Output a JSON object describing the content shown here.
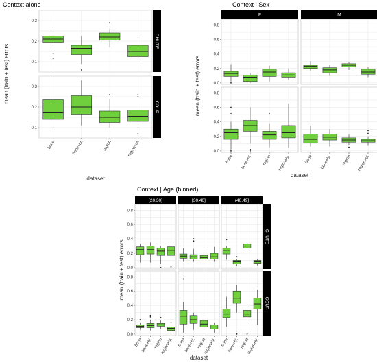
{
  "colors": {
    "box_fill": "#6fcf3d",
    "box_edge": "#333333",
    "panel_bg": "#ffffff",
    "grid": "#e4e4e4",
    "strip_bg": "#000000",
    "strip_text": "#ffffff"
  },
  "chart_data": [
    {
      "type": "box",
      "title": "Context alone",
      "xlabel": "dataset",
      "ylabel": "mean (train + test) errors",
      "categories": [
        "bone",
        "bone+bl.",
        "region",
        "region+bl."
      ],
      "row_strips": [
        "CHUTE",
        "COUP"
      ],
      "col_strips": [],
      "yticks": [
        [
          "0.1",
          "0.2",
          "0.3"
        ],
        [
          "0.1",
          "0.2",
          "0.3"
        ]
      ],
      "ylims": [
        [
          0.05,
          0.35
        ],
        [
          0.05,
          0.35
        ]
      ],
      "grid": true,
      "boxes": [
        [
          [
            {
              "min": 0.17,
              "q1": 0.195,
              "med": 0.21,
              "q3": 0.225,
              "max": 0.26,
              "out": [
                0.14,
                0.115
              ]
            },
            {
              "min": 0.09,
              "q1": 0.135,
              "med": 0.165,
              "q3": 0.18,
              "max": 0.225,
              "out": [
                0.06
              ]
            },
            {
              "min": 0.17,
              "q1": 0.205,
              "med": 0.22,
              "q3": 0.24,
              "max": 0.26,
              "out": [
                0.29
              ]
            },
            {
              "min": 0.09,
              "q1": 0.125,
              "med": 0.15,
              "q3": 0.18,
              "max": 0.22,
              "out": []
            }
          ]
        ],
        [
          [
            {
              "min": 0.1,
              "q1": 0.14,
              "med": 0.175,
              "q3": 0.235,
              "max": 0.35,
              "out": []
            },
            {
              "min": 0.11,
              "q1": 0.165,
              "med": 0.2,
              "q3": 0.255,
              "max": 0.33,
              "out": []
            },
            {
              "min": 0.1,
              "q1": 0.125,
              "med": 0.15,
              "q3": 0.18,
              "max": 0.24,
              "out": [
                0.26
              ]
            },
            {
              "min": 0.1,
              "q1": 0.13,
              "med": 0.155,
              "q3": 0.185,
              "max": 0.24,
              "out": [
                0.25,
                0.26,
                0.07
              ]
            }
          ]
        ]
      ]
    },
    {
      "type": "box",
      "title": "Context | Sex",
      "xlabel": "dataset",
      "ylabel": "mean (train + test) errors",
      "categories": [
        "bone",
        "bone+bl.",
        "region",
        "region+bl."
      ],
      "row_strips": [
        "CHUTE",
        "COUP"
      ],
      "col_strips": [
        "F",
        "M"
      ],
      "yticks": [
        [
          "0.0",
          "0.2",
          "0.4",
          "0.6",
          "0.8"
        ],
        [
          "0.0",
          "0.2",
          "0.4",
          "0.6",
          "0.8"
        ]
      ],
      "ylims": [
        [
          -0.02,
          0.88
        ],
        [
          -0.02,
          0.88
        ]
      ],
      "grid": true,
      "boxes": [
        [
          [
            {
              "min": 0.02,
              "q1": 0.09,
              "med": 0.13,
              "q3": 0.16,
              "max": 0.26,
              "out": [
                0.0
              ]
            },
            {
              "min": 0.0,
              "q1": 0.02,
              "med": 0.08,
              "q3": 0.11,
              "max": 0.14,
              "out": []
            },
            {
              "min": 0.02,
              "q1": 0.09,
              "med": 0.15,
              "q3": 0.19,
              "max": 0.24,
              "out": []
            },
            {
              "min": 0.04,
              "q1": 0.08,
              "med": 0.11,
              "q3": 0.14,
              "max": 0.2,
              "out": []
            }
          ],
          [
            {
              "min": 0.17,
              "q1": 0.2,
              "med": 0.23,
              "q3": 0.245,
              "max": 0.3,
              "out": []
            },
            {
              "min": 0.1,
              "q1": 0.14,
              "med": 0.18,
              "q3": 0.21,
              "max": 0.25,
              "out": []
            },
            {
              "min": 0.18,
              "q1": 0.22,
              "med": 0.245,
              "q3": 0.265,
              "max": 0.29,
              "out": []
            },
            {
              "min": 0.08,
              "q1": 0.12,
              "med": 0.15,
              "q3": 0.19,
              "max": 0.22,
              "out": []
            }
          ]
        ],
        [
          [
            {
              "min": 0.02,
              "q1": 0.16,
              "med": 0.25,
              "q3": 0.3,
              "max": 0.4,
              "out": [
                0.52,
                0.6,
                0.0
              ]
            },
            {
              "min": 0.1,
              "q1": 0.27,
              "med": 0.35,
              "q3": 0.42,
              "max": 0.6,
              "out": [
                0.02,
                0.0
              ]
            },
            {
              "min": 0.05,
              "q1": 0.16,
              "med": 0.22,
              "q3": 0.27,
              "max": 0.38,
              "out": [
                0.52
              ]
            },
            {
              "min": 0.04,
              "q1": 0.18,
              "med": 0.25,
              "q3": 0.35,
              "max": 0.65,
              "out": []
            }
          ],
          [
            {
              "min": 0.06,
              "q1": 0.11,
              "med": 0.16,
              "q3": 0.23,
              "max": 0.35,
              "out": []
            },
            {
              "min": 0.06,
              "q1": 0.15,
              "med": 0.19,
              "q3": 0.23,
              "max": 0.3,
              "out": []
            },
            {
              "min": 0.08,
              "q1": 0.12,
              "med": 0.15,
              "q3": 0.18,
              "max": 0.23,
              "out": [
                0.05
              ]
            },
            {
              "min": 0.07,
              "q1": 0.12,
              "med": 0.14,
              "q3": 0.16,
              "max": 0.2,
              "out": [
                0.24,
                0.28
              ]
            }
          ]
        ]
      ]
    },
    {
      "type": "box",
      "title": "Context | Age (binned)",
      "xlabel": "dataset",
      "ylabel": "mean (train + test) errors",
      "categories": [
        "bone",
        "bone+bl.",
        "region",
        "region+bl."
      ],
      "row_strips": [
        "CHUTE",
        "COUP"
      ],
      "col_strips": [
        "[20,30]",
        "[30,40]",
        "(40,49]"
      ],
      "yticks": [
        [
          "0.0",
          "0.2",
          "0.4",
          "0.6",
          "0.8"
        ],
        [
          "0.0",
          "0.2",
          "0.4",
          "0.6",
          "0.8"
        ]
      ],
      "ylims": [
        [
          -0.02,
          0.88
        ],
        [
          -0.02,
          0.88
        ]
      ],
      "grid": true,
      "boxes": [
        [
          [
            {
              "min": 0.07,
              "q1": 0.18,
              "med": 0.25,
              "q3": 0.29,
              "max": 0.33,
              "out": []
            },
            {
              "min": 0.07,
              "q1": 0.19,
              "med": 0.25,
              "q3": 0.3,
              "max": 0.35,
              "out": []
            },
            {
              "min": 0.05,
              "q1": 0.17,
              "med": 0.23,
              "q3": 0.27,
              "max": 0.3,
              "out": [
                0.0
              ]
            },
            {
              "min": 0.05,
              "q1": 0.17,
              "med": 0.24,
              "q3": 0.29,
              "max": 0.35,
              "out": [
                0.01
              ]
            }
          ],
          [
            {
              "min": 0.08,
              "q1": 0.13,
              "med": 0.16,
              "q3": 0.19,
              "max": 0.27,
              "out": []
            },
            {
              "min": 0.08,
              "q1": 0.12,
              "med": 0.15,
              "q3": 0.18,
              "max": 0.26,
              "out": [
                0.37,
                0.4
              ]
            },
            {
              "min": 0.08,
              "q1": 0.12,
              "med": 0.14,
              "q3": 0.17,
              "max": 0.22,
              "out": []
            },
            {
              "min": 0.08,
              "q1": 0.12,
              "med": 0.15,
              "q3": 0.2,
              "max": 0.29,
              "out": []
            }
          ],
          [
            {
              "min": 0.11,
              "q1": 0.19,
              "med": 0.24,
              "q3": 0.27,
              "max": 0.3,
              "out": [
                0.39
              ]
            },
            {
              "min": 0.02,
              "q1": 0.05,
              "med": 0.08,
              "q3": 0.1,
              "max": 0.12,
              "out": [
                0.15
              ]
            },
            {
              "min": 0.23,
              "q1": 0.27,
              "med": 0.3,
              "q3": 0.33,
              "max": 0.36,
              "out": []
            },
            {
              "min": 0.03,
              "q1": 0.06,
              "med": 0.08,
              "q3": 0.1,
              "max": 0.12,
              "out": []
            }
          ]
        ],
        [
          [
            {
              "min": 0.06,
              "q1": 0.09,
              "med": 0.11,
              "q3": 0.13,
              "max": 0.16,
              "out": [
                0.2
              ]
            },
            {
              "min": 0.05,
              "q1": 0.09,
              "med": 0.12,
              "q3": 0.15,
              "max": 0.2,
              "out": [
                0.24,
                0.26
              ]
            },
            {
              "min": 0.07,
              "q1": 0.11,
              "med": 0.13,
              "q3": 0.15,
              "max": 0.19,
              "out": [
                0.23
              ]
            },
            {
              "min": 0.02,
              "q1": 0.05,
              "med": 0.08,
              "q3": 0.1,
              "max": 0.13,
              "out": [
                0.16
              ]
            }
          ],
          [
            {
              "min": 0.02,
              "q1": 0.14,
              "med": 0.25,
              "q3": 0.33,
              "max": 0.45,
              "out": [
                0.77
              ]
            },
            {
              "min": 0.06,
              "q1": 0.15,
              "med": 0.2,
              "q3": 0.26,
              "max": 0.3,
              "out": []
            },
            {
              "min": 0.03,
              "q1": 0.1,
              "med": 0.14,
              "q3": 0.19,
              "max": 0.27,
              "out": []
            },
            {
              "min": 0.02,
              "q1": 0.07,
              "med": 0.1,
              "q3": 0.13,
              "max": 0.16,
              "out": []
            }
          ],
          [
            {
              "min": 0.1,
              "q1": 0.23,
              "med": 0.28,
              "q3": 0.35,
              "max": 0.52,
              "out": []
            },
            {
              "min": 0.3,
              "q1": 0.43,
              "med": 0.5,
              "q3": 0.6,
              "max": 0.68,
              "out": [
                0.0
              ]
            },
            {
              "min": 0.15,
              "q1": 0.24,
              "med": 0.28,
              "q3": 0.33,
              "max": 0.42,
              "out": [
                0.0
              ]
            },
            {
              "min": 0.13,
              "q1": 0.35,
              "med": 0.42,
              "q3": 0.5,
              "max": 0.62,
              "out": []
            }
          ]
        ]
      ]
    }
  ]
}
